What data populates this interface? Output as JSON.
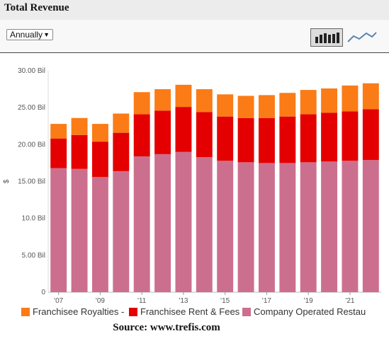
{
  "header": {
    "title": "Total Revenue"
  },
  "toolbar": {
    "period_select": {
      "value": "Annually",
      "caret": "▼"
    },
    "bar_view_icon": "bar-chart-icon",
    "line_view_icon": "line-chart-icon"
  },
  "source": "Source: www.trefis.com",
  "chart_data": {
    "type": "bar",
    "stacked": true,
    "categories": [
      "2007",
      "2008",
      "2009",
      "2010",
      "2011",
      "2012",
      "2013",
      "2014",
      "2015",
      "2016",
      "2017",
      "2018",
      "2019",
      "2020",
      "2021",
      "2022"
    ],
    "x_tick_labels": [
      "'07",
      "",
      "'09",
      "",
      "'11",
      "",
      "'13",
      "",
      "'15",
      "",
      "'17",
      "",
      "'19",
      "",
      "'21",
      ""
    ],
    "series": [
      {
        "name": "Company Operated Restau",
        "color": "#cc6f8e",
        "values": [
          16.8,
          16.7,
          15.6,
          16.4,
          18.4,
          18.7,
          19.0,
          18.3,
          17.8,
          17.6,
          17.5,
          17.5,
          17.6,
          17.7,
          17.8,
          17.9
        ]
      },
      {
        "name": "Franchisee Rent & Fees",
        "color": "#e40000",
        "values": [
          4.0,
          4.6,
          4.8,
          5.2,
          5.7,
          5.9,
          6.1,
          6.1,
          6.0,
          6.0,
          6.1,
          6.3,
          6.5,
          6.6,
          6.7,
          6.9
        ]
      },
      {
        "name": "Franchisee Royalties -",
        "color": "#fb7b16",
        "values": [
          2.0,
          2.3,
          2.4,
          2.6,
          3.0,
          2.9,
          3.0,
          3.1,
          3.0,
          3.0,
          3.1,
          3.2,
          3.3,
          3.3,
          3.5,
          3.5
        ]
      }
    ],
    "legend_order": [
      "Franchisee Royalties -",
      "Franchisee Rent & Fees",
      "Company Operated Restau"
    ],
    "y_tick_values": [
      0,
      5,
      10,
      15,
      20,
      25,
      30
    ],
    "y_tick_labels": [
      "0",
      "5.00 Bil",
      "10.0 Bil",
      "15.00 Bil",
      "20.00 Bil",
      "25.00 Bil",
      "30.00 Bil"
    ],
    "ylabel": "$",
    "xlabel": "",
    "title": "Total Revenue",
    "ylim": [
      0,
      30
    ],
    "grid": false,
    "legend_position": "bottom"
  }
}
